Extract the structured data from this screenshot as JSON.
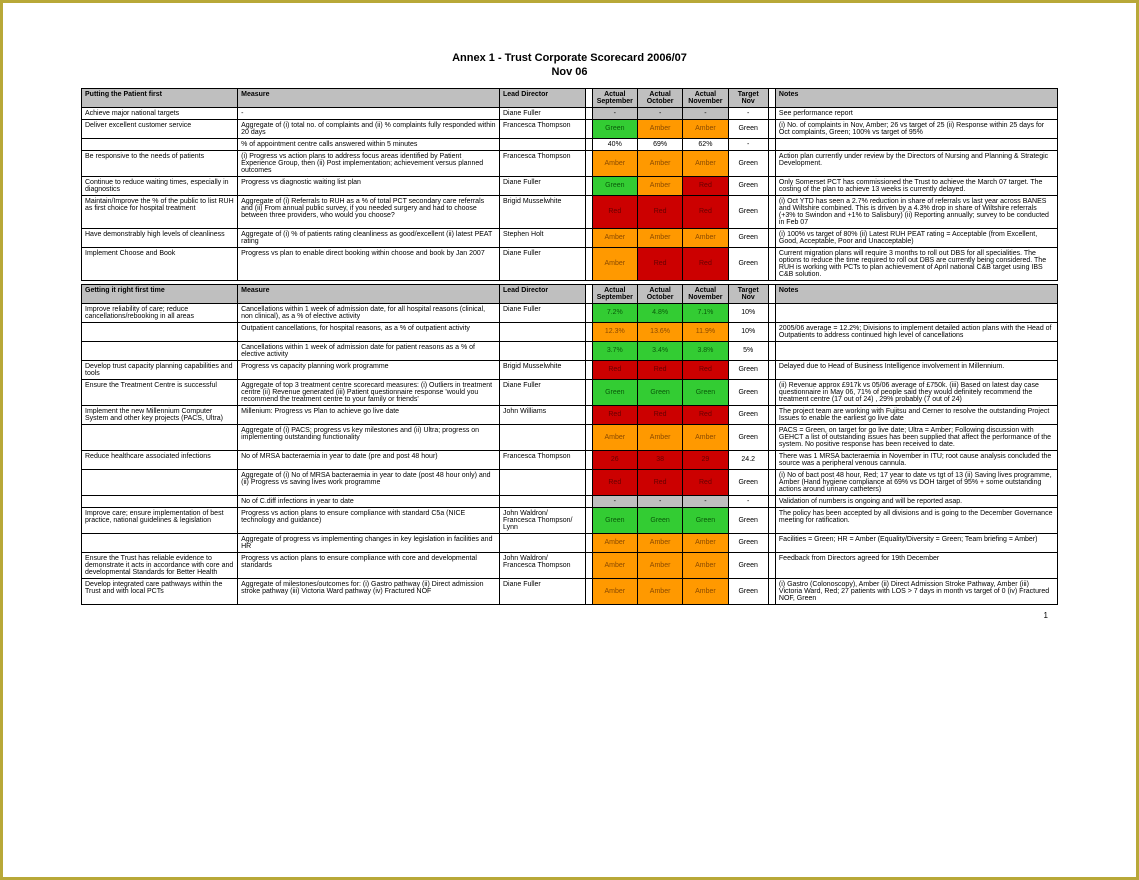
{
  "title_line1": "Annex 1 - Trust Corporate Scorecard 2006/07",
  "title_line2": "Nov 06",
  "colors": {
    "green": "#33cc33",
    "amber": "#ff9900",
    "red": "#cc0000",
    "grey": "#bfbfbf",
    "white": "#ffffff"
  },
  "headers": {
    "measure": "Measure",
    "director": "Lead  Director",
    "sep": "Actual September",
    "oct": "Actual October",
    "nov": "Actual November",
    "target": "Target Nov",
    "notes": "Notes"
  },
  "sections": [
    {
      "title": "Putting the Patient first",
      "rows": [
        {
          "label": "Achieve major national targets",
          "measure": "-",
          "director": "Diane Fuller",
          "sep": {
            "t": "-",
            "c": "grey"
          },
          "oct": {
            "t": "-",
            "c": "grey"
          },
          "nov": {
            "t": "-",
            "c": "grey"
          },
          "target": "-",
          "notes": "See performance report"
        },
        {
          "label": "Deliver excellent customer service",
          "measure": "Aggregate of (i) total no. of complaints and (ii) % complaints fully responded within 20 days",
          "director": "Francesca Thompson",
          "sep": {
            "t": "Green",
            "c": "green"
          },
          "oct": {
            "t": "Amber",
            "c": "amber"
          },
          "nov": {
            "t": "Amber",
            "c": "amber"
          },
          "target": "Green",
          "notes": "(i) No. of complaints in Nov, Amber; 26 vs target of 25 (ii) Response within 25 days for Oct complaints, Green; 100% vs target of 95%"
        },
        {
          "label": "",
          "measure": "% of appointment centre calls answered within 5 minutes",
          "director": "",
          "sep": {
            "t": "40%",
            "c": "white"
          },
          "oct": {
            "t": "69%",
            "c": "white"
          },
          "nov": {
            "t": "62%",
            "c": "white"
          },
          "target": "-",
          "notes": ""
        },
        {
          "label": "Be responsive to the needs of patients",
          "measure": "(i) Progress vs action plans to address focus areas identified by Patient Experience Group, then (ii) Post implementation; achievement versus planned outcomes",
          "director": "Francesca Thompson",
          "sep": {
            "t": "Amber",
            "c": "amber"
          },
          "oct": {
            "t": "Amber",
            "c": "amber"
          },
          "nov": {
            "t": "Amber",
            "c": "amber"
          },
          "target": "Green",
          "notes": "Action plan currently under review by the Directors of Nursing and Planning & Strategic Development."
        },
        {
          "label": "Continue to reduce waiting times, especially in diagnostics",
          "measure": "Progress vs diagnostic waiting list plan",
          "director": "Diane Fuller",
          "sep": {
            "t": "Green",
            "c": "green"
          },
          "oct": {
            "t": "Amber",
            "c": "amber"
          },
          "nov": {
            "t": "Red",
            "c": "red"
          },
          "target": "Green",
          "notes": "Only Somerset PCT has commissioned the Trust to achieve the March 07 target. The costing of the plan to achieve 13 weeks is currently delayed."
        },
        {
          "label": "Maintain/Improve the % of the public to list RUH as first choice for hospital treatment",
          "measure": "Aggregate of (i) Referrals to RUH as a % of total PCT secondary care referrals and (ii) From annual public survey, if you needed surgery and had to choose between three providers, who would you choose?",
          "director": "Brigid Musselwhite",
          "sep": {
            "t": "Red",
            "c": "red"
          },
          "oct": {
            "t": "Red",
            "c": "red"
          },
          "nov": {
            "t": "Red",
            "c": "red"
          },
          "target": "Green",
          "notes": "(i) Oct YTD has seen a 2.7% reduction in share of referrals vs last year across BANES and Wiltshire combined. This is driven by a 4.3% drop in share of Wiltshire referrals (+3% to Swindon and +1% to Salisbury) (ii) Reporting annually; survey to be conducted in Feb 07"
        },
        {
          "label": "Have demonstrably high levels of cleanliness",
          "measure": "Aggregate of (i) % of patients rating cleanliness as good/excellent (ii) latest PEAT rating",
          "director": "Stephen Holt",
          "sep": {
            "t": "Amber",
            "c": "amber"
          },
          "oct": {
            "t": "Amber",
            "c": "amber"
          },
          "nov": {
            "t": "Amber",
            "c": "amber"
          },
          "target": "Green",
          "notes": "(i) 100% vs target of 80% (ii) Latest RUH PEAT rating = Acceptable (from Excellent, Good, Acceptable, Poor and Unacceptable)"
        },
        {
          "label": "Implement Choose and Book",
          "measure": "Progress vs plan to enable direct booking within choose and book by Jan 2007",
          "director": "Diane Fuller",
          "sep": {
            "t": "Amber",
            "c": "amber"
          },
          "oct": {
            "t": "Red",
            "c": "red"
          },
          "nov": {
            "t": "Red",
            "c": "red"
          },
          "target": "Green",
          "notes": "Current migration plans will require 3 months to roll out DBS for all specialities. The options to reduce the time required to roll out DBS are currently being considered. The RUH is working with PCTs to plan achievement of April national C&B target using IBS C&B solution."
        }
      ]
    },
    {
      "title": "Getting it right first time",
      "rows": [
        {
          "label": "Improve reliability of care; reduce cancellations/rebooking in all areas",
          "measure": "Cancellations within 1 week of admission date, for all hospital reasons (clinical, non clinical), as a % of elective activity",
          "director": "Diane Fuller",
          "sep": {
            "t": "7.2%",
            "c": "green"
          },
          "oct": {
            "t": "4.8%",
            "c": "green"
          },
          "nov": {
            "t": "7.1%",
            "c": "green"
          },
          "target": "10%",
          "notes": ""
        },
        {
          "label": "",
          "measure": "Outpatient cancellations, for hospital reasons, as a % of outpatient activity",
          "director": "",
          "sep": {
            "t": "12.3%",
            "c": "amber"
          },
          "oct": {
            "t": "13.6%",
            "c": "amber"
          },
          "nov": {
            "t": "11.9%",
            "c": "amber"
          },
          "target": "10%",
          "notes": "2005/06 average = 12.2%; Divisions to implement detailed action plans with the Head of Outpatients to address continued high level of cancellations"
        },
        {
          "label": "",
          "measure": "Cancellations within 1 week of admission date for patient reasons as a % of elective activity",
          "director": "",
          "sep": {
            "t": "3.7%",
            "c": "green"
          },
          "oct": {
            "t": "3.4%",
            "c": "green"
          },
          "nov": {
            "t": "3.8%",
            "c": "green"
          },
          "target": "5%",
          "notes": ""
        },
        {
          "label": "Develop trust capacity planning capabilities and tools",
          "measure": "Progress vs capacity planning work programme",
          "director": "Brigid Musselwhite",
          "sep": {
            "t": "Red",
            "c": "red"
          },
          "oct": {
            "t": "Red",
            "c": "red"
          },
          "nov": {
            "t": "Red",
            "c": "red"
          },
          "target": "Green",
          "notes": "Delayed due to Head of Business Intelligence involvement in Millennium."
        },
        {
          "label": "Ensure the Treatment Centre is successful",
          "measure": "Aggregate of top 3 treatment centre scorecard measures: (i) Outliers in treatment centre (ii) Revenue generated (iii) Patient questionnaire response 'would you recommend the treatment centre to your family or friends'",
          "director": "Diane Fuller",
          "sep": {
            "t": "Green",
            "c": "green"
          },
          "oct": {
            "t": "Green",
            "c": "green"
          },
          "nov": {
            "t": "Green",
            "c": "green"
          },
          "target": "Green",
          "notes": "(ii) Revenue approx £917k vs 05/06 average of £750k. (iii) Based on latest day case questionnaire in May 06, 71% of people said they would definitely recommend the treatment centre (17 out of 24) , 29% probably (7 out of 24)"
        },
        {
          "label": "Implement the new Millennium Computer System and other key projects (PACS, Ultra)",
          "measure": "Millenium: Progress vs Plan to achieve go live date",
          "director": "John Williams",
          "sep": {
            "t": "Red",
            "c": "red"
          },
          "oct": {
            "t": "Red",
            "c": "red"
          },
          "nov": {
            "t": "Red",
            "c": "red"
          },
          "target": "Green",
          "notes": "The project team are working with Fujitsu and Cerner to resolve the outstanding Project Issues to enable the earliest go live date"
        },
        {
          "label": "",
          "measure": "Aggregate of (i) PACS; progress vs key milestones and (ii) Ultra; progress on implementing outstanding functionality",
          "director": "",
          "sep": {
            "t": "Amber",
            "c": "amber"
          },
          "oct": {
            "t": "Amber",
            "c": "amber"
          },
          "nov": {
            "t": "Amber",
            "c": "amber"
          },
          "target": "Green",
          "notes": "PACS = Green, on target for go live date; Ultra = Amber; Following discussion with GEHCT a list of outstanding issues has been supplied that affect the performance of the system.  No positive response has been received to date."
        },
        {
          "label": "Reduce healthcare associated infections",
          "measure": "No of MRSA bacteraemia in year to date (pre and post 48 hour)",
          "director": "Francesca Thompson",
          "sep": {
            "t": "26",
            "c": "red"
          },
          "oct": {
            "t": "38",
            "c": "red"
          },
          "nov": {
            "t": "29",
            "c": "red"
          },
          "target": "24.2",
          "notes": "There was 1 MRSA bacteraemia in November in ITU; root cause analysis concluded the source was a peripheral venous cannula."
        },
        {
          "label": "",
          "measure": "Aggregate of (i) No of MRSA bacteraemia in year to date (post 48 hour only) and (ii) Progress vs saving lives work programme",
          "director": "",
          "sep": {
            "t": "Red",
            "c": "red"
          },
          "oct": {
            "t": "Red",
            "c": "red"
          },
          "nov": {
            "t": "Red",
            "c": "red"
          },
          "target": "Green",
          "notes": "(i) No of bact post 48 hour, Red; 17 year to date vs tgt of 13 (ii) Saving lives programme, Amber (Hand hygiene compliance at 69% vs DOH target of 95% + some outstanding actions around urinary catheters)"
        },
        {
          "label": "",
          "measure": "No of C.diff infections in year to date",
          "director": "",
          "sep": {
            "t": "-",
            "c": "grey"
          },
          "oct": {
            "t": "-",
            "c": "grey"
          },
          "nov": {
            "t": "-",
            "c": "grey"
          },
          "target": "-",
          "notes": "Validation of numbers is ongoing and will be reported asap."
        },
        {
          "label": "Improve care; ensure implementation of best practice, national guidelines & legislation",
          "measure": "Progress vs action plans to ensure compliance with standard C5a (NICE technology and guidance)",
          "director": "John Waldron/ Francesca Thompson/ Lynn",
          "sep": {
            "t": "Green",
            "c": "green"
          },
          "oct": {
            "t": "Green",
            "c": "green"
          },
          "nov": {
            "t": "Green",
            "c": "green"
          },
          "target": "Green",
          "notes": "The policy has been accepted by all divisions and is going to the December Governance meeting for ratification."
        },
        {
          "label": "",
          "measure": "Aggregate of progress vs implementing changes in key legislation in facilities and HR",
          "director": "",
          "sep": {
            "t": "Amber",
            "c": "amber"
          },
          "oct": {
            "t": "Amber",
            "c": "amber"
          },
          "nov": {
            "t": "Amber",
            "c": "amber"
          },
          "target": "Green",
          "notes": "Facilities = Green; HR = Amber (Equality/Diversity  = Green; Team briefing = Amber)"
        },
        {
          "label": "Ensure the Trust has reliable evidence to demonstrate it acts in accordance with core and developmental Standards for Better Health",
          "measure": "Progress vs action plans to ensure compliance with core and developmental standards",
          "director": "John Waldron/ Francesca Thompson",
          "sep": {
            "t": "Amber",
            "c": "amber"
          },
          "oct": {
            "t": "Amber",
            "c": "amber"
          },
          "nov": {
            "t": "Amber",
            "c": "amber"
          },
          "target": "Green",
          "notes": "Feedback from Directors agreed for 19th December"
        },
        {
          "label": "Develop integrated care pathways within the Trust and with local PCTs",
          "measure": "Aggregate of milestones/outcomes for: (i) Gastro pathway (ii) Direct admission stroke pathway (iii) Victoria Ward pathway (iv) Fractured NOF",
          "director": "Diane Fuller",
          "sep": {
            "t": "Amber",
            "c": "amber"
          },
          "oct": {
            "t": "Amber",
            "c": "amber"
          },
          "nov": {
            "t": "Amber",
            "c": "amber"
          },
          "target": "Green",
          "notes": "(i) Gastro (Colonoscopy), Amber (ii) Direct Admission Stroke Pathway, Amber (iii) Victoria Ward, Red; 27 patients with LOS > 7 days in month vs target of 0 (iv) Fractured NOF, Green"
        }
      ]
    }
  ],
  "pagenum": "1"
}
